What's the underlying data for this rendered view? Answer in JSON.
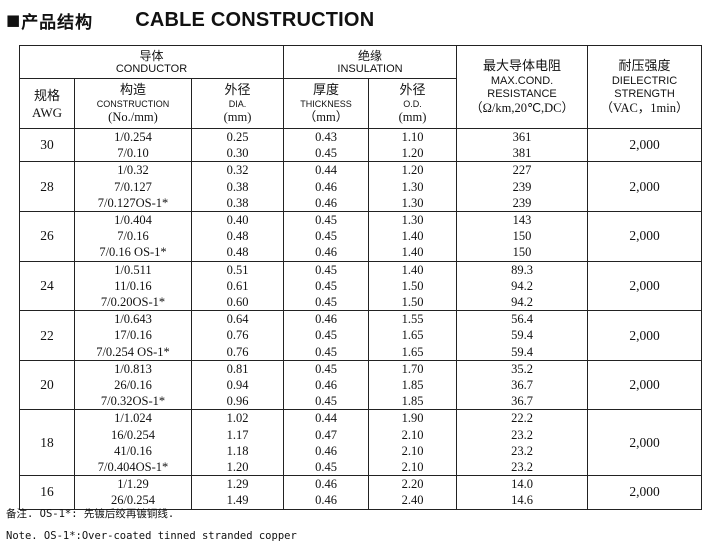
{
  "title": {
    "marker": "■",
    "zh": "产品结构",
    "en": "CABLE CONSTRUCTION"
  },
  "headers": {
    "conductor_zh": "导体",
    "conductor_en": "CONDUCTOR",
    "insulation_zh": "绝缘",
    "insulation_en": "INSULATION",
    "awg_zh": "规格",
    "awg_en": "AWG",
    "construction_zh": "构造",
    "construction_en": "CONSTRUCTION",
    "construction_unit": "(No./mm)",
    "dia_zh": "外径",
    "dia_en": "DIA.",
    "dia_unit": "(mm)",
    "thickness_zh": "厚度",
    "thickness_en": "THICKNESS",
    "thickness_unit": "（mm）",
    "od_zh": "外径",
    "od_en": "O.D.",
    "od_unit": "(mm)",
    "resistance_zh": "最大导体电阻",
    "resistance_en1": "MAX.COND.",
    "resistance_en2": "RESISTANCE",
    "resistance_unit": "（Ω/km,20℃,DC）",
    "dielectric_zh": "耐压强度",
    "dielectric_en1": "DIELECTRIC",
    "dielectric_en2": "STRENGTH",
    "dielectric_unit": "（VAC，1min）"
  },
  "rows": [
    {
      "awg": "30",
      "construction": [
        "1/0.254",
        "7/0.10"
      ],
      "dia": [
        "0.25",
        "0.30"
      ],
      "thickness": [
        "0.43",
        "0.45"
      ],
      "od": [
        "1.10",
        "1.20"
      ],
      "resistance": [
        "361",
        "381"
      ],
      "voltage": "2,000"
    },
    {
      "awg": "28",
      "construction": [
        "1/0.32",
        "7/0.127",
        "7/0.127OS-1*"
      ],
      "dia": [
        "0.32",
        "0.38",
        "0.38"
      ],
      "thickness": [
        "0.44",
        "0.46",
        "0.46"
      ],
      "od": [
        "1.20",
        "1.30",
        "1.30"
      ],
      "resistance": [
        "227",
        "239",
        "239"
      ],
      "voltage": "2,000"
    },
    {
      "awg": "26",
      "construction": [
        "1/0.404",
        "7/0.16",
        "7/0.16 OS-1*"
      ],
      "dia": [
        "0.40",
        "0.48",
        "0.48"
      ],
      "thickness": [
        "0.45",
        "0.45",
        "0.46"
      ],
      "od": [
        "1.30",
        "1.40",
        "1.40"
      ],
      "resistance": [
        "143",
        "150",
        "150"
      ],
      "voltage": "2,000"
    },
    {
      "awg": "24",
      "construction": [
        "1/0.511",
        "11/0.16",
        "7/0.20OS-1*"
      ],
      "dia": [
        "0.51",
        "0.61",
        "0.60"
      ],
      "thickness": [
        "0.45",
        "0.45",
        "0.45"
      ],
      "od": [
        "1.40",
        "1.50",
        "1.50"
      ],
      "resistance": [
        "89.3",
        "94.2",
        "94.2"
      ],
      "voltage": "2,000"
    },
    {
      "awg": "22",
      "construction": [
        "1/0.643",
        "17/0.16",
        "7/0.254 OS-1*"
      ],
      "dia": [
        "0.64",
        "0.76",
        "0.76"
      ],
      "thickness": [
        "0.46",
        "0.45",
        "0.45"
      ],
      "od": [
        "1.55",
        "1.65",
        "1.65"
      ],
      "resistance": [
        "56.4",
        "59.4",
        "59.4"
      ],
      "voltage": "2,000"
    },
    {
      "awg": "20",
      "construction": [
        "1/0.813",
        "26/0.16",
        "7/0.32OS-1*"
      ],
      "dia": [
        "0.81",
        "0.94",
        "0.96"
      ],
      "thickness": [
        "0.45",
        "0.46",
        "0.45"
      ],
      "od": [
        "1.70",
        "1.85",
        "1.85"
      ],
      "resistance": [
        "35.2",
        "36.7",
        "36.7"
      ],
      "voltage": "2,000"
    },
    {
      "awg": "18",
      "construction": [
        "1/1.024",
        "16/0.254",
        "41/0.16",
        "7/0.404OS-1*"
      ],
      "dia": [
        "1.02",
        "1.17",
        "1.18",
        "1.20"
      ],
      "thickness": [
        "0.44",
        "0.47",
        "0.46",
        "0.45"
      ],
      "od": [
        "1.90",
        "2.10",
        "2.10",
        "2.10"
      ],
      "resistance": [
        "22.2",
        "23.2",
        "23.2",
        "23.2"
      ],
      "voltage": "2,000"
    },
    {
      "awg": "16",
      "construction": [
        "1/1.29",
        "26/0.254"
      ],
      "dia": [
        "1.29",
        "1.49"
      ],
      "thickness": [
        "0.46",
        "0.46"
      ],
      "od": [
        "2.20",
        "2.40"
      ],
      "resistance": [
        "14.0",
        "14.6"
      ],
      "voltage": "2,000"
    }
  ],
  "notes": {
    "zh": "备注. OS-1*:   先镀后绞再镀铜线.",
    "en": "Note. OS-1*:Over-coated tinned stranded copper"
  }
}
